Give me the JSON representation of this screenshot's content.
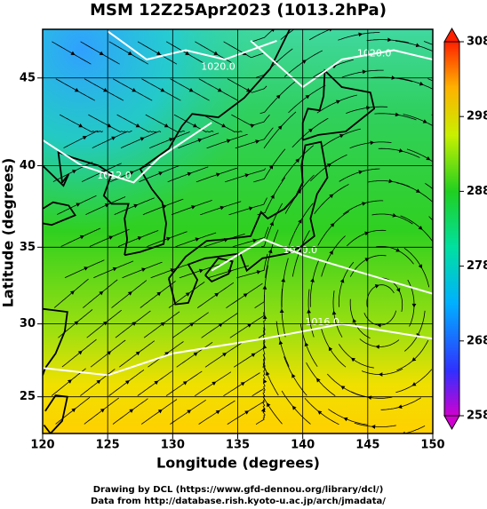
{
  "title": "MSM 12Z25Apr2023 (1013.2hPa)",
  "x_axis": {
    "label": "Longitude (degrees)",
    "lim": [
      120,
      150
    ],
    "ticks": [
      120,
      125,
      130,
      135,
      140,
      145,
      150
    ]
  },
  "y_axis": {
    "label": "Latitude  (degrees)",
    "lim": [
      22.4,
      47.6
    ],
    "ticks": [
      25,
      30,
      35,
      40,
      45
    ],
    "scale": "mercator"
  },
  "grid": true,
  "colorbar": {
    "lim": [
      258,
      308
    ],
    "ticks": [
      258,
      268,
      278,
      288,
      298,
      308
    ]
  },
  "contour_labels": [
    "1020.0",
    "1020.0",
    "1012.0",
    "1020.0",
    "1016.0"
  ],
  "credits": [
    "Drawing by DCL (https://www.gfd-dennou.org/library/dcl/)",
    "Data from http://database.rish.kyoto-u.ac.jp/arch/jmadata/"
  ]
}
